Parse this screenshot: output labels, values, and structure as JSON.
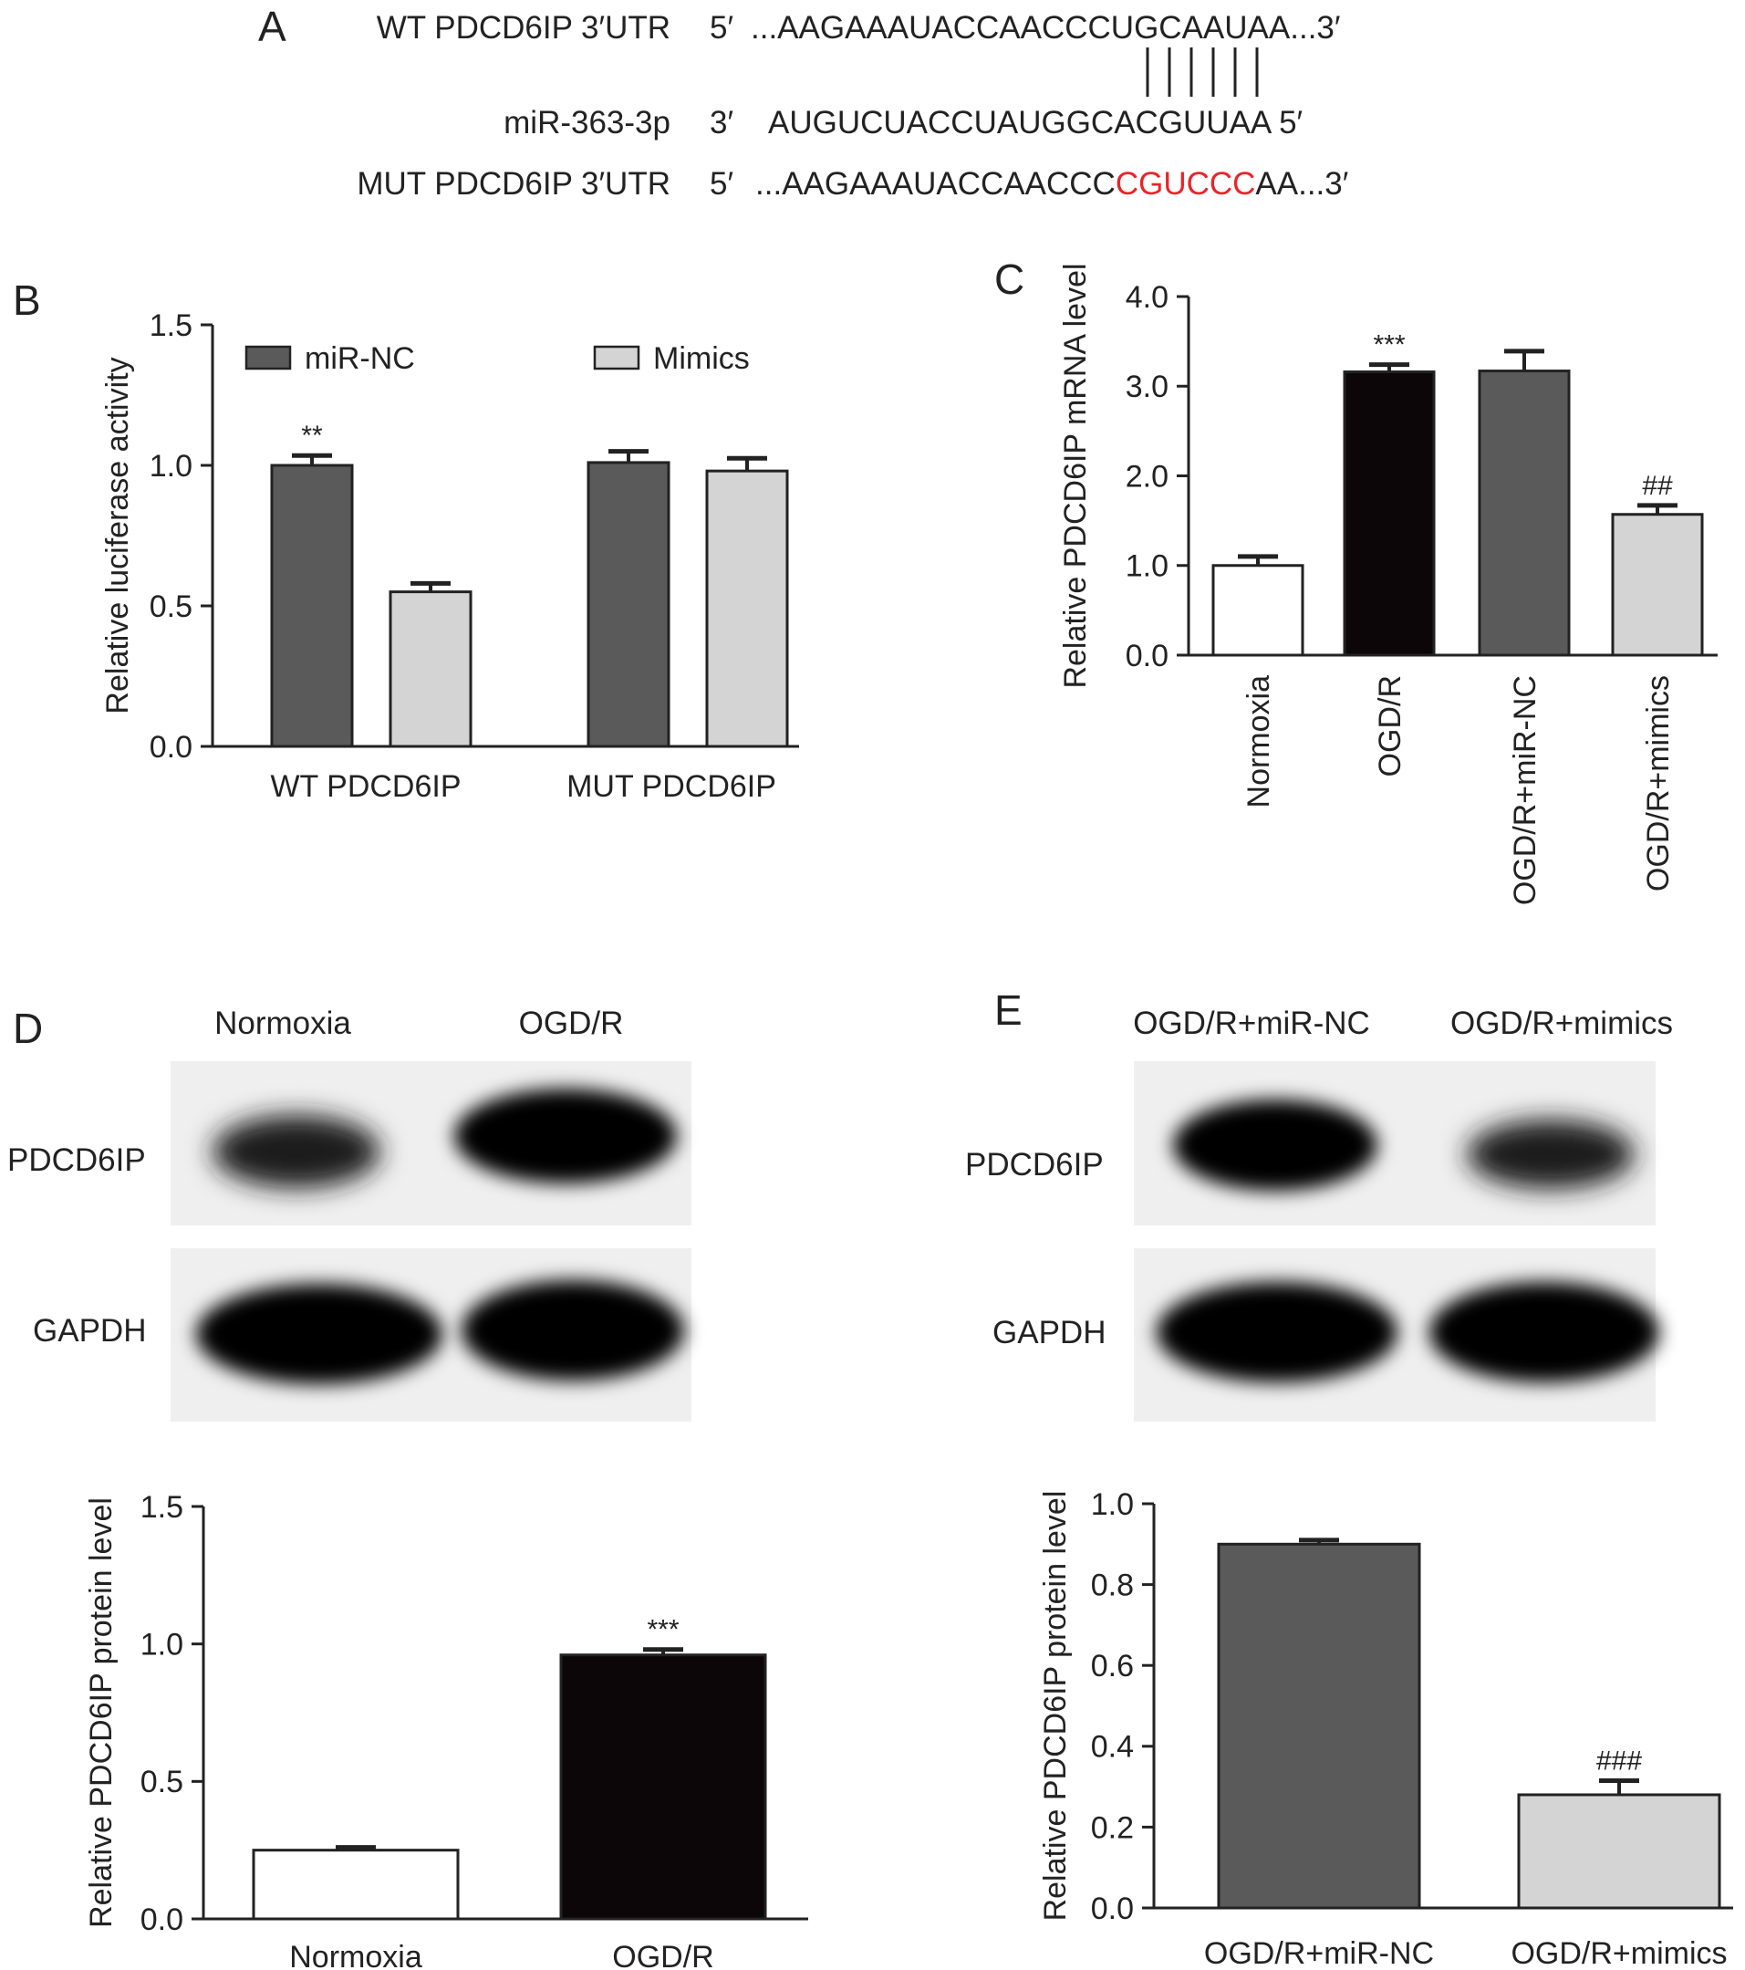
{
  "panel_labels": {
    "a": "A",
    "b": "B",
    "c": "C",
    "d": "D",
    "e": "E"
  },
  "panel_a": {
    "rows": [
      {
        "label": "WT PDCD6IP 3′UTR",
        "end5": "5′",
        "pre": "...AAGAAAUACCAACCCUGCAAUAA...3′",
        "mut": "",
        "post": ""
      },
      {
        "label": "miR-363-3p",
        "end5": "3′",
        "pre": "AUGUCUACCUAUGGCACGUUAA 5′",
        "mut": "",
        "post": ""
      },
      {
        "label": "MUT PDCD6IP 3′UTR",
        "end5": "5′",
        "pre": "...AAGAAAUACCAACCC",
        "mut": "CGUCCC",
        "post": "AA...3′"
      }
    ],
    "pairing_lines": 6,
    "mutation_color": "#e8252a"
  },
  "chart_data": [
    {
      "id": "B",
      "type": "bar",
      "categories": [
        "WT PDCD6IP",
        "MUT PDCD6IP"
      ],
      "series": [
        {
          "name": "miR-NC",
          "color": "#5a5a5a",
          "values": [
            1.0,
            1.01
          ],
          "errors": [
            0.035,
            0.04
          ]
        },
        {
          "name": "Mimics",
          "color": "#d4d4d4",
          "values": [
            0.55,
            0.98
          ],
          "errors": [
            0.03,
            0.045
          ]
        }
      ],
      "annotations": [
        "**",
        "",
        "",
        ""
      ],
      "ylabel": "Relative luciferase activity",
      "ylim": [
        0,
        1.5
      ],
      "yticks": [
        "0.0",
        "0.5",
        "1.0",
        "1.5"
      ],
      "legend": "top"
    },
    {
      "id": "C",
      "type": "bar",
      "categories": [
        "Normoxia",
        "OGD/R",
        "OGD/R+miR-NC",
        "OGD/R+mimics"
      ],
      "values": [
        1.0,
        3.16,
        3.17,
        1.57
      ],
      "errors": [
        0.1,
        0.08,
        0.22,
        0.1
      ],
      "colors": [
        "#ffffff",
        "#0c0608",
        "#5a5a5a",
        "#d4d4d4"
      ],
      "annotations": [
        "",
        "***",
        "",
        "##"
      ],
      "ylabel": "Relative PDCD6IP mRNA level",
      "ylim": [
        0,
        4
      ],
      "yticks": [
        "0.0",
        "1.0",
        "2.0",
        "3.0",
        "4.0"
      ]
    },
    {
      "id": "D",
      "type": "bar",
      "categories": [
        "Normoxia",
        "OGD/R"
      ],
      "values": [
        0.25,
        0.96
      ],
      "errors": [
        0.01,
        0.02
      ],
      "colors": [
        "#ffffff",
        "#0c0608"
      ],
      "annotations": [
        "",
        "***"
      ],
      "ylabel": "Relative PDCD6IP protein level",
      "ylim": [
        0,
        1.5
      ],
      "yticks": [
        "0.0",
        "0.5",
        "1.0",
        "1.5"
      ]
    },
    {
      "id": "E",
      "type": "bar",
      "categories": [
        "OGD/R+miR-NC",
        "OGD/R+mimics"
      ],
      "values": [
        0.9,
        0.28
      ],
      "errors": [
        0.01,
        0.035
      ],
      "colors": [
        "#5a5a5a",
        "#d4d4d4"
      ],
      "annotations": [
        "",
        "###"
      ],
      "ylabel": "Relative PDCD6IP protein level",
      "ylim": [
        0,
        1.0
      ],
      "yticks": [
        "0.0",
        "0.2",
        "0.4",
        "0.6",
        "0.8",
        "1.0"
      ]
    }
  ],
  "blot_d": {
    "lane_labels": [
      "Normoxia",
      "OGD/R"
    ],
    "row_labels": [
      "PDCD6IP",
      "GAPDH"
    ]
  },
  "blot_e": {
    "lane_labels": [
      "OGD/R+miR-NC",
      "OGD/R+mimics"
    ],
    "row_labels": [
      "PDCD6IP",
      "GAPDH"
    ]
  }
}
